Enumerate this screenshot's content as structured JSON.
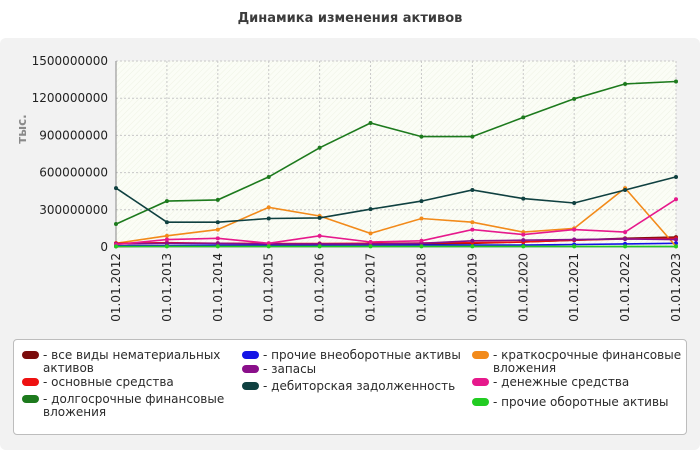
{
  "chart_data": {
    "type": "line",
    "title": "Динамика изменения активов",
    "ylabel": "тыс.",
    "xlabel": "",
    "ylim": [
      0,
      1500000000
    ],
    "yticks": [
      0,
      300000000,
      600000000,
      900000000,
      1200000000,
      1500000000
    ],
    "grid": true,
    "legend_position": "bottom",
    "categories": [
      "01.01.2012",
      "01.01.2013",
      "01.01.2014",
      "01.01.2015",
      "01.01.2016",
      "01.01.2017",
      "01.01.2018",
      "01.01.2019",
      "01.01.2020",
      "01.01.2021",
      "01.01.2022",
      "01.01.2023"
    ],
    "series": [
      {
        "name": "- все виды нематериальных активов",
        "color": "#7b0c0c",
        "values": [
          5000000,
          8000000,
          10000000,
          12000000,
          15000000,
          20000000,
          25000000,
          30000000,
          40000000,
          55000000,
          70000000,
          80000000
        ]
      },
      {
        "name": "- прочие внеоборотные активы",
        "color": "#1414e6",
        "values": [
          10000000,
          12000000,
          15000000,
          15000000,
          15000000,
          15000000,
          15000000,
          15000000,
          15000000,
          20000000,
          25000000,
          30000000
        ]
      },
      {
        "name": "- краткосрочные финансовые вложения",
        "color": "#f28a1a",
        "values": [
          30000000,
          90000000,
          140000000,
          320000000,
          250000000,
          110000000,
          230000000,
          200000000,
          120000000,
          150000000,
          475000000,
          5000000
        ]
      },
      {
        "name": "- основные средства",
        "color": "#ee1111",
        "values": [
          30000000,
          35000000,
          30000000,
          28000000,
          28000000,
          30000000,
          32000000,
          35000000,
          40000000,
          55000000,
          65000000,
          70000000
        ]
      },
      {
        "name": "- запасы",
        "color": "#8a0f8a",
        "values": [
          25000000,
          30000000,
          30000000,
          25000000,
          25000000,
          25000000,
          30000000,
          50000000,
          55000000,
          60000000,
          65000000,
          60000000
        ]
      },
      {
        "name": "- денежные средства",
        "color": "#e6198c",
        "values": [
          20000000,
          60000000,
          70000000,
          30000000,
          90000000,
          40000000,
          50000000,
          140000000,
          100000000,
          140000000,
          120000000,
          385000000
        ]
      },
      {
        "name": "- долгосрочные финансовые вложения",
        "color": "#1d7a1d",
        "values": [
          185000000,
          370000000,
          380000000,
          565000000,
          800000000,
          1000000000,
          890000000,
          890000000,
          1045000000,
          1195000000,
          1315000000,
          1335000000
        ]
      },
      {
        "name": "- дебиторская задолженность",
        "color": "#0f4040",
        "values": [
          475000000,
          200000000,
          200000000,
          230000000,
          235000000,
          305000000,
          370000000,
          460000000,
          390000000,
          355000000,
          460000000,
          565000000
        ]
      },
      {
        "name": "- прочие оборотные активы",
        "color": "#22cc22",
        "values": [
          5000000,
          5000000,
          5000000,
          5000000,
          5000000,
          5000000,
          5000000,
          5000000,
          5000000,
          5000000,
          5000000,
          5000000
        ]
      }
    ]
  }
}
